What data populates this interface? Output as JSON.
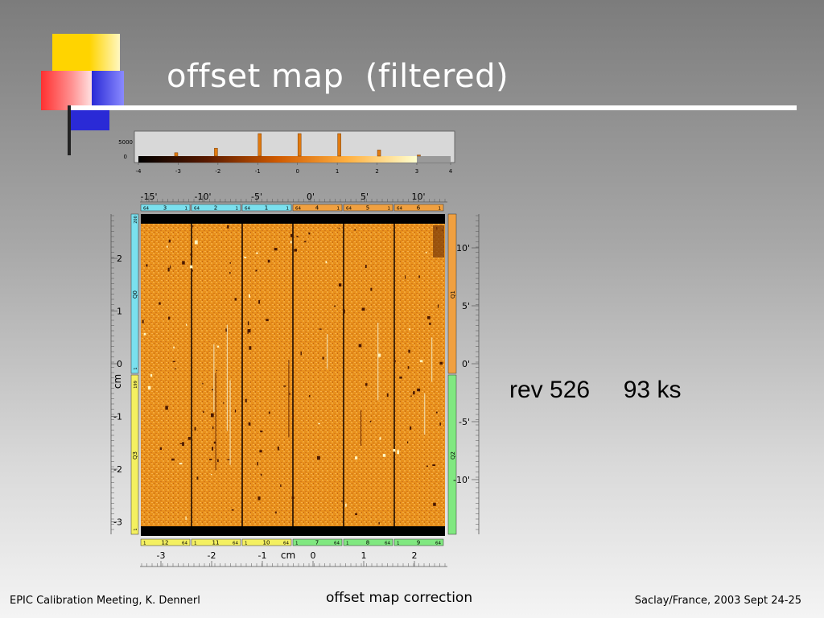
{
  "slide": {
    "title": "offset map  (filtered)",
    "annotation": "rev 526     93 ks"
  },
  "footer": {
    "left": "EPIC Calibration Meeting, K. Dennerl",
    "center": "offset map correction",
    "right": "Saclay/France, 2003 Sept 24-25"
  },
  "histogram": {
    "y_ticks": [
      "5000",
      "0"
    ],
    "x_ticks": [
      "-4",
      "-3",
      "-2",
      "-1",
      "0",
      "1",
      "2",
      "3",
      "4"
    ],
    "peaks": [
      {
        "x": -2.05,
        "value": 0.35
      },
      {
        "x": -0.95,
        "value": 1.0
      },
      {
        "x": 0.05,
        "value": 1.0
      },
      {
        "x": 1.05,
        "value": 1.0
      },
      {
        "x": 2.05,
        "value": 0.27
      },
      {
        "x": -3.05,
        "value": 0.15
      },
      {
        "x": 3.05,
        "value": 0.05
      }
    ]
  },
  "top_axis": {
    "ticks": [
      "-15'",
      "-10'",
      "-5'",
      "0'",
      "5'",
      "10'"
    ]
  },
  "top_ccds": [
    {
      "left": "64",
      "num": "3",
      "right": "1",
      "color": "#7ae0ee"
    },
    {
      "left": "64",
      "num": "2",
      "right": "1",
      "color": "#7ae0ee"
    },
    {
      "left": "64",
      "num": "1",
      "right": "1",
      "color": "#7ae0ee"
    },
    {
      "left": "64",
      "num": "4",
      "right": "1",
      "color": "#f0a040"
    },
    {
      "left": "64",
      "num": "5",
      "right": "1",
      "color": "#f0a040"
    },
    {
      "left": "64",
      "num": "6",
      "right": "1",
      "color": "#f0a040"
    }
  ],
  "bottom_ccds": [
    {
      "left": "1",
      "num": "12",
      "right": "64",
      "color": "#f4f060"
    },
    {
      "left": "1",
      "num": "11",
      "right": "64",
      "color": "#f4f060"
    },
    {
      "left": "1",
      "num": "10",
      "right": "64",
      "color": "#f4f060"
    },
    {
      "left": "1",
      "num": "7",
      "right": "64",
      "color": "#80e880"
    },
    {
      "left": "1",
      "num": "8",
      "right": "64",
      "color": "#80e880"
    },
    {
      "left": "1",
      "num": "9",
      "right": "64",
      "color": "#80e880"
    }
  ],
  "left_axis": {
    "label": "cm",
    "ticks": [
      "2",
      "1",
      "0",
      "-1",
      "-2",
      "-3"
    ]
  },
  "left_quadrants": [
    {
      "label": "Q0",
      "color": "#7ae0ee"
    },
    {
      "label": "Q3",
      "color": "#f4f060"
    }
  ],
  "left_small_labels": [
    "200",
    "1",
    "199",
    "1"
  ],
  "right_axis": {
    "ticks": [
      "10'",
      "5'",
      "0'",
      "-5'",
      "-10'"
    ]
  },
  "right_quadrants": [
    {
      "label": "Q1",
      "color": "#f0a040"
    },
    {
      "label": "Q2",
      "color": "#80e880"
    }
  ],
  "bottom_axis": {
    "label": "cm",
    "ticks": [
      "-3",
      "-2",
      "-1",
      "0",
      "1",
      "2"
    ]
  },
  "colors": {
    "map_base": "#e8901c",
    "map_dark": "#b05a10",
    "deco_yellow": "#ffd400",
    "deco_red": "#ff4040",
    "deco_blue": "#2a2ad6"
  }
}
